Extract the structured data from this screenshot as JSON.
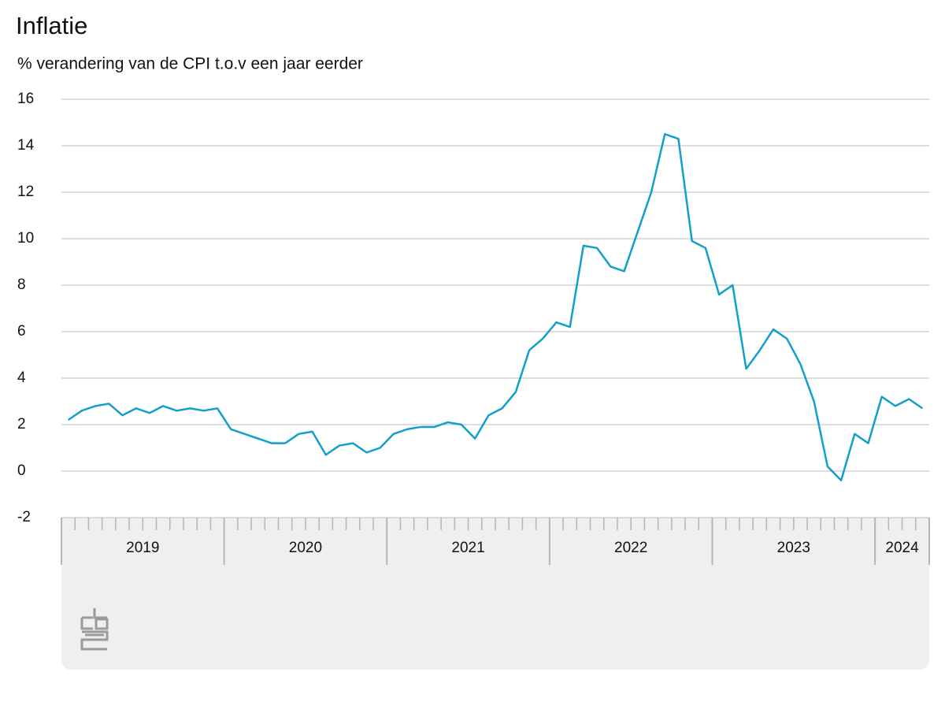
{
  "chart_data": {
    "type": "line",
    "title": "Inflatie",
    "subtitle": "% verandering van de CPI t.o.v een jaar eerder",
    "categories": [
      "2019",
      null,
      null,
      null,
      null,
      null,
      null,
      null,
      null,
      null,
      null,
      null,
      "2020",
      null,
      null,
      null,
      null,
      null,
      null,
      null,
      null,
      null,
      null,
      null,
      "2021",
      null,
      null,
      null,
      null,
      null,
      null,
      null,
      null,
      null,
      null,
      null,
      "2022",
      null,
      null,
      null,
      null,
      null,
      null,
      null,
      null,
      null,
      null,
      null,
      "2023",
      null,
      null,
      null,
      null,
      null,
      null,
      null,
      null,
      null,
      null,
      null,
      "2024",
      null,
      null,
      null
    ],
    "series": [
      {
        "name": "Inflatie",
        "color": "#119fcc",
        "values": [
          2.2,
          2.6,
          2.8,
          2.9,
          2.4,
          2.7,
          2.5,
          2.8,
          2.6,
          2.7,
          2.6,
          2.7,
          1.8,
          1.6,
          1.4,
          1.2,
          1.2,
          1.6,
          1.7,
          0.7,
          1.1,
          1.2,
          0.8,
          1.0,
          1.6,
          1.8,
          1.9,
          1.9,
          2.1,
          2.0,
          1.4,
          2.4,
          2.7,
          3.4,
          5.2,
          5.7,
          6.4,
          6.2,
          9.7,
          9.6,
          8.8,
          8.6,
          10.3,
          12.0,
          14.5,
          14.3,
          9.9,
          9.6,
          7.6,
          8.0,
          4.4,
          5.2,
          6.1,
          5.7,
          4.6,
          3.0,
          0.2,
          -0.4,
          1.6,
          1.2,
          3.2,
          2.8,
          3.1,
          2.7
        ]
      }
    ],
    "ylim": [
      -2,
      16
    ],
    "yticks": [
      -2,
      0,
      2,
      4,
      6,
      8,
      10,
      12,
      14,
      16
    ],
    "grid": true
  }
}
